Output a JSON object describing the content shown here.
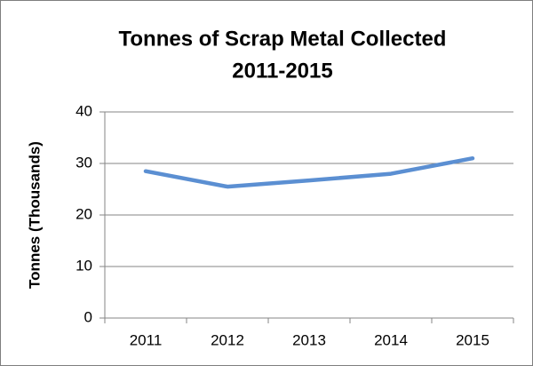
{
  "chart_data": {
    "type": "line",
    "title": "Tonnes of Scrap Metal Collected",
    "subtitle": "2011-2015",
    "y_label": "Tonnes (Thousands)",
    "categories": [
      "2011",
      "2012",
      "2013",
      "2014",
      "2015"
    ],
    "series": [
      {
        "name": "Tonnes",
        "color": "#5b8fd2",
        "values": [
          28.5,
          25.5,
          26.7,
          28,
          31
        ]
      }
    ],
    "ylim": [
      0,
      40
    ],
    "yticks": [
      0,
      10,
      20,
      30,
      40
    ],
    "grid": true,
    "legend": false
  }
}
